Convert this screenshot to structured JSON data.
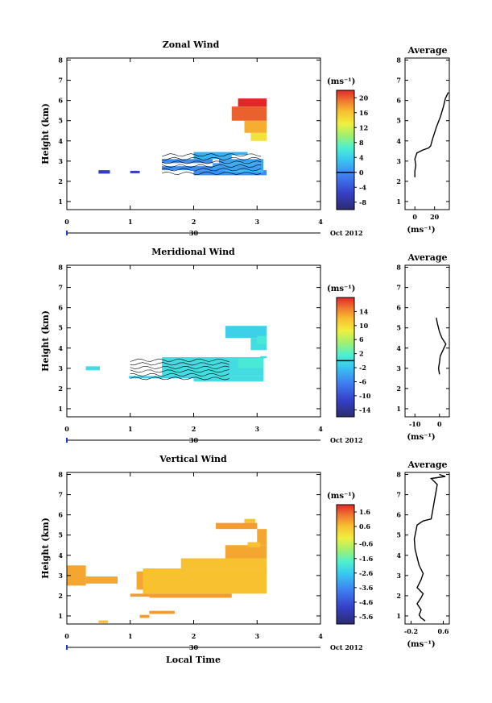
{
  "chart_data": [
    {
      "type": "heatmap",
      "title": "Zonal Wind",
      "ylabel": "Height (km)",
      "xlim": [
        0,
        4
      ],
      "ylim": [
        0.6,
        8.1
      ],
      "x_ticks": [
        "0",
        "1",
        "2",
        "3",
        "4"
      ],
      "y_ticks": [
        "1",
        "2",
        "3",
        "4",
        "5",
        "6",
        "7",
        "8"
      ],
      "date_axis": {
        "day": "30",
        "label": "Oct 2012"
      },
      "colorbar": {
        "unit": "(ms⁻¹)",
        "ticks": [
          "-8",
          "-4",
          "0",
          "4",
          "8",
          "12",
          "16",
          "20"
        ],
        "range": [
          -10,
          22
        ],
        "zero_line": 0
      },
      "cells": [
        {
          "x0": 0.5,
          "x1": 0.68,
          "y0": 2.38,
          "y1": 2.55,
          "v": -6
        },
        {
          "x0": 1.0,
          "x1": 1.15,
          "y0": 2.4,
          "y1": 2.52,
          "v": -6
        },
        {
          "x0": 2.0,
          "x1": 3.15,
          "y0": 2.3,
          "y1": 2.55,
          "v": 0
        },
        {
          "x0": 1.5,
          "x1": 2.4,
          "y0": 2.55,
          "y1": 2.75,
          "v": 0
        },
        {
          "x0": 2.3,
          "x1": 3.1,
          "y0": 2.55,
          "y1": 2.9,
          "v": 1
        },
        {
          "x0": 1.5,
          "x1": 2.3,
          "y0": 2.9,
          "y1": 3.1,
          "v": 0
        },
        {
          "x0": 2.4,
          "x1": 3.1,
          "y0": 2.9,
          "y1": 3.1,
          "v": 1
        },
        {
          "x0": 2.0,
          "x1": 2.6,
          "y0": 3.1,
          "y1": 3.45,
          "v": 2
        },
        {
          "x0": 2.6,
          "x1": 2.85,
          "y0": 3.3,
          "y1": 3.45,
          "v": 2
        },
        {
          "x0": 2.5,
          "x1": 3.1,
          "y0": 2.45,
          "y1": 2.55,
          "v": 3
        },
        {
          "x0": 2.45,
          "x1": 2.95,
          "y0": 2.75,
          "y1": 2.95,
          "v": 2
        },
        {
          "x0": 2.9,
          "x1": 3.15,
          "y0": 4.0,
          "y1": 4.4,
          "v": 14
        },
        {
          "x0": 2.8,
          "x1": 3.15,
          "y0": 4.4,
          "y1": 5.0,
          "v": 17
        },
        {
          "x0": 2.6,
          "x1": 3.15,
          "y0": 5.0,
          "y1": 5.7,
          "v": 20
        },
        {
          "x0": 2.7,
          "x1": 3.15,
          "y0": 5.7,
          "y1": 6.1,
          "v": 22
        }
      ],
      "average_profile": {
        "title": "Average",
        "xlim": [
          -10,
          35
        ],
        "x_ticks": [
          "0",
          "20"
        ],
        "xunit": "(ms⁻¹)",
        "ylim": [
          0.6,
          8.1
        ],
        "y_ticks": [
          "1",
          "2",
          "3",
          "4",
          "5",
          "6",
          "7",
          "8"
        ],
        "points": [
          [
            0,
            2.2
          ],
          [
            0,
            2.5
          ],
          [
            1,
            2.8
          ],
          [
            0,
            3.1
          ],
          [
            2,
            3.4
          ],
          [
            8,
            3.55
          ],
          [
            14,
            3.65
          ],
          [
            16,
            3.75
          ],
          [
            18,
            4.1
          ],
          [
            22,
            4.7
          ],
          [
            26,
            5.2
          ],
          [
            29,
            5.7
          ],
          [
            31,
            6.1
          ],
          [
            34,
            6.4
          ]
        ]
      }
    },
    {
      "type": "heatmap",
      "title": "Meridional Wind",
      "ylabel": "Height (km)",
      "xlim": [
        0,
        4
      ],
      "ylim": [
        0.6,
        8.1
      ],
      "x_ticks": [
        "0",
        "1",
        "2",
        "3",
        "4"
      ],
      "y_ticks": [
        "1",
        "2",
        "3",
        "4",
        "5",
        "6",
        "7",
        "8"
      ],
      "date_axis": {
        "day": "30",
        "label": "Oct 2012"
      },
      "colorbar": {
        "unit": "(ms⁻¹)",
        "ticks": [
          "-14",
          "-10",
          "-6",
          "-2",
          "2",
          "6",
          "10",
          "14"
        ],
        "range": [
          -16,
          18
        ],
        "zero_line": 0
      },
      "cells": [
        {
          "x0": 0.3,
          "x1": 0.52,
          "y0": 2.9,
          "y1": 3.1,
          "v": 0
        },
        {
          "x0": 0.98,
          "x1": 2.0,
          "y0": 2.5,
          "y1": 2.62,
          "v": -1
        },
        {
          "x0": 1.5,
          "x1": 3.1,
          "y0": 2.62,
          "y1": 3.55,
          "v": 0
        },
        {
          "x0": 2.0,
          "x1": 3.1,
          "y0": 2.35,
          "y1": 2.62,
          "v": 0
        },
        {
          "x0": 2.7,
          "x1": 3.1,
          "y0": 3.0,
          "y1": 3.5,
          "v": 1
        },
        {
          "x0": 3.05,
          "x1": 3.15,
          "y0": 3.5,
          "y1": 3.6,
          "v": 0
        },
        {
          "x0": 2.9,
          "x1": 3.15,
          "y0": 3.9,
          "y1": 4.5,
          "v": 0
        },
        {
          "x0": 2.5,
          "x1": 3.15,
          "y0": 4.5,
          "y1": 5.1,
          "v": -1
        },
        {
          "x0": 3.0,
          "x1": 3.15,
          "y0": 4.2,
          "y1": 4.6,
          "v": 1
        }
      ],
      "average_profile": {
        "title": "Average",
        "xlim": [
          -14,
          4
        ],
        "x_ticks": [
          "-10",
          "0"
        ],
        "xunit": "(ms⁻¹)",
        "ylim": [
          0.6,
          8.1
        ],
        "y_ticks": [
          "1",
          "2",
          "3",
          "4",
          "5",
          "6",
          "7",
          "8"
        ],
        "points": [
          [
            0,
            2.7
          ],
          [
            -0.4,
            3.0
          ],
          [
            0,
            3.3
          ],
          [
            0.3,
            3.6
          ],
          [
            1.8,
            4.0
          ],
          [
            2.6,
            4.2
          ],
          [
            1,
            4.5
          ],
          [
            0,
            4.8
          ],
          [
            -0.8,
            5.2
          ],
          [
            -1.3,
            5.5
          ]
        ]
      }
    },
    {
      "type": "heatmap",
      "title": "Vertical Wind",
      "xlabel": "Local Time",
      "ylabel": "Height (km)",
      "xlim": [
        0,
        4
      ],
      "ylim": [
        0.6,
        8.1
      ],
      "x_ticks": [
        "0",
        "1",
        "2",
        "3",
        "4"
      ],
      "y_ticks": [
        "1",
        "2",
        "3",
        "4",
        "5",
        "6",
        "7",
        "8"
      ],
      "date_axis": {
        "day": "30",
        "label": "Oct 2012"
      },
      "colorbar": {
        "unit": "(ms⁻¹)",
        "ticks": [
          "1.6",
          "0.6",
          "-0.6",
          "-1.6",
          "-2.6",
          "-3.6",
          "-4.6",
          "-5.6"
        ],
        "range": [
          -6.1,
          2.1
        ],
        "zero_line": null
      },
      "cells": [
        {
          "x0": 0.5,
          "x1": 0.65,
          "y0": 0.65,
          "y1": 0.78,
          "v": 0.6
        },
        {
          "x0": 1.15,
          "x1": 1.3,
          "y0": 0.9,
          "y1": 1.05,
          "v": 1.0
        },
        {
          "x0": 1.3,
          "x1": 1.7,
          "y0": 1.1,
          "y1": 1.25,
          "v": 1.0
        },
        {
          "x0": 1.0,
          "x1": 1.3,
          "y0": 1.95,
          "y1": 2.1,
          "v": 1.0
        },
        {
          "x0": 1.3,
          "x1": 2.6,
          "y0": 1.9,
          "y1": 2.1,
          "v": 1.0
        },
        {
          "x0": 0.0,
          "x1": 0.3,
          "y0": 2.5,
          "y1": 3.5,
          "v": 0.9
        },
        {
          "x0": 0.3,
          "x1": 0.8,
          "y0": 2.6,
          "y1": 2.95,
          "v": 0.9
        },
        {
          "x0": 1.1,
          "x1": 1.6,
          "y0": 2.3,
          "y1": 3.2,
          "v": 0.9
        },
        {
          "x0": 1.2,
          "x1": 3.15,
          "y0": 2.1,
          "y1": 3.35,
          "v": 0.6
        },
        {
          "x0": 1.8,
          "x1": 3.15,
          "y0": 3.35,
          "y1": 3.85,
          "v": 0.6
        },
        {
          "x0": 2.5,
          "x1": 3.15,
          "y0": 3.85,
          "y1": 4.5,
          "v": 0.9
        },
        {
          "x0": 3.0,
          "x1": 3.15,
          "y0": 4.5,
          "y1": 5.3,
          "v": 0.9
        },
        {
          "x0": 2.35,
          "x1": 3.0,
          "y0": 5.3,
          "y1": 5.6,
          "v": 1.0
        },
        {
          "x0": 2.8,
          "x1": 2.97,
          "y0": 5.6,
          "y1": 5.8,
          "v": 0.6
        },
        {
          "x0": 2.85,
          "x1": 3.05,
          "y0": 4.4,
          "y1": 4.65,
          "v": 0.6
        }
      ],
      "average_profile": {
        "title": "Average",
        "xlim": [
          -0.35,
          0.75
        ],
        "x_ticks": [
          "-0.2",
          "0.6"
        ],
        "xunit": "(ms⁻¹)",
        "ylim": [
          0.6,
          8.1
        ],
        "y_ticks": [
          "1",
          "2",
          "3",
          "4",
          "5",
          "6",
          "7",
          "8"
        ],
        "points": [
          [
            0.15,
            0.75
          ],
          [
            0.05,
            0.9
          ],
          [
            0,
            1.05
          ],
          [
            0.05,
            1.3
          ],
          [
            -0.05,
            1.6
          ],
          [
            0.05,
            1.9
          ],
          [
            0.1,
            2.1
          ],
          [
            -0.05,
            2.4
          ],
          [
            0.05,
            2.8
          ],
          [
            0.1,
            3.1
          ],
          [
            0,
            3.5
          ],
          [
            -0.05,
            3.9
          ],
          [
            -0.1,
            4.3
          ],
          [
            -0.12,
            4.8
          ],
          [
            -0.08,
            5.2
          ],
          [
            -0.05,
            5.5
          ],
          [
            0.1,
            5.7
          ],
          [
            0.3,
            5.8
          ],
          [
            0.45,
            7.5
          ],
          [
            0.3,
            7.8
          ],
          [
            0.65,
            7.9
          ],
          [
            0.5,
            8.0
          ]
        ]
      }
    }
  ]
}
